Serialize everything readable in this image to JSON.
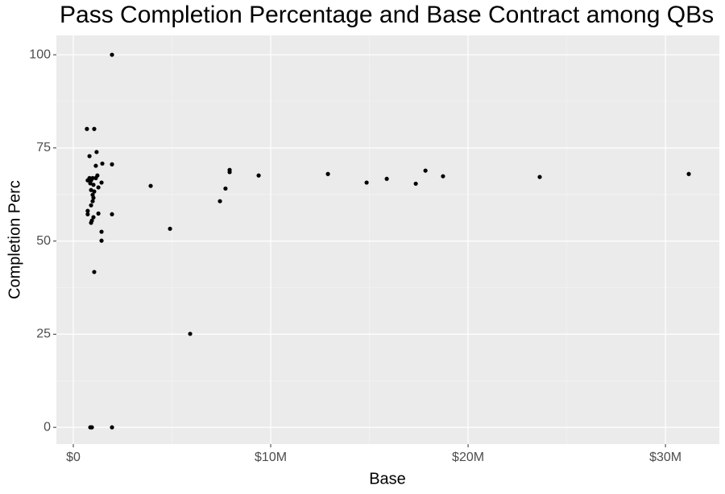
{
  "chart_data": {
    "type": "scatter",
    "title": "Pass Completion Percentage and Base Contract among QBs",
    "x_label": "Base",
    "y_label": "Completion Perc",
    "color": "#000000",
    "grid": true,
    "xlim": [
      -857000,
      32730000
    ],
    "ylim": [
      -4.5,
      105.2
    ],
    "xticks": [
      {
        "value": 0,
        "label": "$0"
      },
      {
        "value": 10000000,
        "label": "$10M"
      },
      {
        "value": 20000000,
        "label": "$20M"
      },
      {
        "value": 30000000,
        "label": "$30M"
      }
    ],
    "yticks": [
      0,
      25,
      50,
      75,
      100
    ],
    "x": [
      1960000,
      690000,
      1060000,
      820000,
      1180000,
      1960000,
      1470000,
      1140000,
      820000,
      980000,
      730000,
      900000,
      1220000,
      1140000,
      860000,
      1020000,
      1430000,
      1270000,
      900000,
      1060000,
      980000,
      1020000,
      980000,
      900000,
      730000,
      730000,
      1270000,
      1960000,
      1020000,
      940000,
      900000,
      1430000,
      1430000,
      1060000,
      860000,
      940000,
      1960000,
      3920000,
      4900000,
      5920000,
      7430000,
      7710000,
      7920000,
      7920000,
      9390000,
      12900000,
      14860000,
      15880000,
      17350000,
      17840000,
      18730000,
      23630000,
      31180000
    ],
    "values": [
      100,
      80.1,
      80.1,
      72.8,
      73.9,
      70.6,
      70.8,
      70.2,
      66.9,
      66.9,
      66.3,
      66.3,
      67.6,
      66.9,
      65.5,
      65.1,
      65.7,
      64.4,
      63.7,
      63.3,
      62.4,
      61.6,
      60.7,
      59.6,
      58.1,
      57.2,
      57.4,
      57.2,
      56.4,
      55.5,
      54.9,
      52.5,
      50.1,
      41.7,
      0,
      0,
      0,
      64.8,
      53.3,
      25.1,
      60.7,
      64.1,
      69.1,
      68.5,
      67.6,
      68.0,
      65.7,
      66.7,
      65.4,
      68.9,
      67.4,
      67.2,
      68.0
    ]
  }
}
